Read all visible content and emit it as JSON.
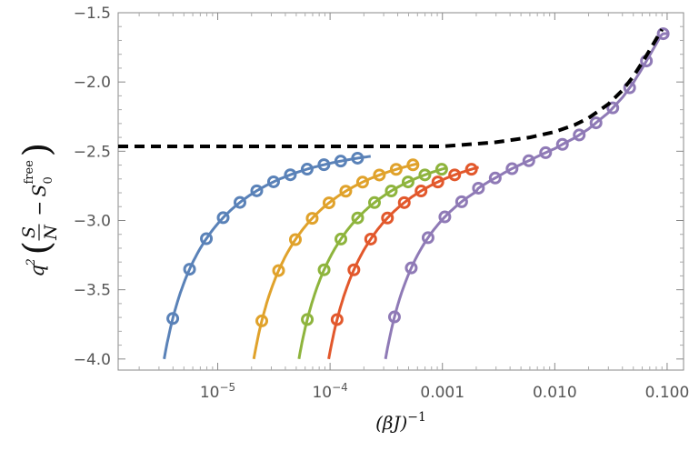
{
  "chart_data": {
    "type": "line",
    "x_scale": "log",
    "y_scale": "linear",
    "xlim": [
      1.3e-06,
      0.14
    ],
    "ylim": [
      -4.08,
      -1.5
    ],
    "xlabel": "(βJ)^-1",
    "ylabel": "q^2 (S/N − S_0^free)",
    "x_ticks": [
      {
        "value": 1e-05,
        "base": "10",
        "exp": "−5"
      },
      {
        "value": 0.0001,
        "base": "10",
        "exp": "−4"
      },
      {
        "value": 0.001,
        "label": "0.001"
      },
      {
        "value": 0.01,
        "label": "0.010"
      },
      {
        "value": 0.1,
        "label": "0.100"
      }
    ],
    "y_ticks": [
      {
        "value": -1.5,
        "label": "−1.5"
      },
      {
        "value": -2.0,
        "label": "−2.0"
      },
      {
        "value": -2.5,
        "label": "−2.5"
      },
      {
        "value": -3.0,
        "label": "−3.0"
      },
      {
        "value": -3.5,
        "label": "−3.5"
      },
      {
        "value": -4.0,
        "label": "−4.0"
      }
    ],
    "grid": false,
    "legend": "none",
    "asymptote_level": -2.46,
    "dashed_reference": {
      "style": "dashed",
      "color": "#000000",
      "x": [
        1.3e-06,
        0.001,
        0.003,
        0.006,
        0.01,
        0.015,
        0.02,
        0.03,
        0.04,
        0.05,
        0.06,
        0.07,
        0.08,
        0.09
      ],
      "y": [
        -2.465,
        -2.465,
        -2.435,
        -2.4,
        -2.36,
        -2.31,
        -2.26,
        -2.16,
        -2.06,
        -1.96,
        -1.86,
        -1.77,
        -1.69,
        -1.62
      ]
    },
    "series": [
      {
        "color": "#5a82b8",
        "x0": 1.8e-06,
        "A": 1.4,
        "p": 0.6,
        "points_from": 2e-06,
        "points_to": 0.00023
      },
      {
        "color": "#e0a22b",
        "x0": 1.13e-05,
        "A": 1.4,
        "p": 0.6,
        "points_from": 1.24e-05,
        "points_to": 0.0006
      },
      {
        "color": "#8eb43d",
        "x0": 2.85e-05,
        "A": 1.4,
        "p": 0.6,
        "points_from": 3.15e-05,
        "points_to": 0.0011
      },
      {
        "color": "#e2582c",
        "x0": 5.25e-05,
        "A": 1.4,
        "p": 0.6,
        "points_from": 5.8e-05,
        "points_to": 0.0021
      },
      {
        "color": "#8f7ab6",
        "x0": 0.00017,
        "A": 1.38,
        "p": 0.6,
        "points_from": 0.000188,
        "points_to": 0.1,
        "follows_dashed_from": 0.002
      }
    ]
  }
}
